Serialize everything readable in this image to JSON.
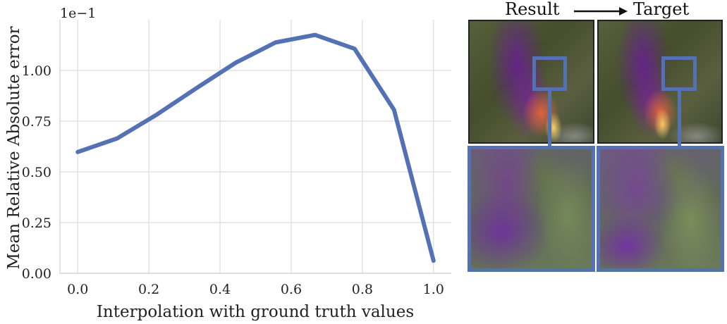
{
  "chart_data": {
    "type": "line",
    "x": [
      0.0,
      0.111,
      0.222,
      0.333,
      0.444,
      0.556,
      0.667,
      0.778,
      0.889,
      1.0
    ],
    "series": [
      {
        "values": [
          0.598,
          0.665,
          0.782,
          0.912,
          1.038,
          1.138,
          1.175,
          1.107,
          0.806,
          0.062
        ]
      }
    ],
    "xlabel": "Interpolation with ground truth values",
    "ylabel": "Mean Relative Absolute error",
    "y_offset_label": "1e−1",
    "xticks": [
      0.0,
      0.2,
      0.4,
      0.6,
      0.8,
      1.0
    ],
    "xtick_labels": [
      "0.0",
      "0.2",
      "0.4",
      "0.6",
      "0.8",
      "1.0"
    ],
    "yticks": [
      0.0,
      0.25,
      0.5,
      0.75,
      1.0
    ],
    "ytick_labels": [
      "0.00",
      "0.25",
      "0.50",
      "0.75",
      "1.00"
    ],
    "xlim": [
      -0.05,
      1.05
    ],
    "ylim": [
      0.0,
      1.25
    ],
    "grid": true,
    "line_color": "#5471b3"
  },
  "panels": {
    "result_label": "Result",
    "target_label": "Target",
    "arrow": "right-arrow-icon",
    "highlight_color": "#5471b3"
  }
}
